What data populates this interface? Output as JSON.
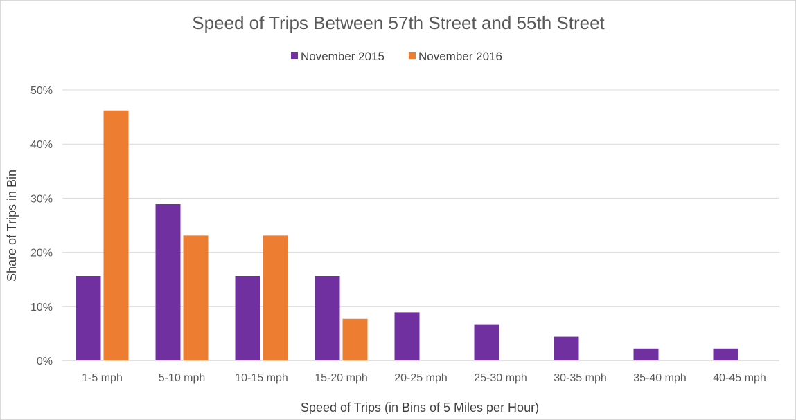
{
  "chart_data": {
    "type": "bar",
    "title": "Speed of Trips Between 57th Street and 55th Street",
    "xlabel": "Speed of Trips (in Bins of 5 Miles per Hour)",
    "ylabel": "Share of Trips in Bin",
    "categories": [
      "1-5 mph",
      "5-10 mph",
      "10-15 mph",
      "15-20 mph",
      "20-25 mph",
      "25-30 mph",
      "30-35 mph",
      "35-40 mph",
      "40-45 mph"
    ],
    "series": [
      {
        "name": "November 2015",
        "color": "#7030a0",
        "values": [
          15.6,
          28.9,
          15.6,
          15.6,
          8.9,
          6.7,
          4.4,
          2.2,
          2.2
        ]
      },
      {
        "name": "November 2016",
        "color": "#ed7d31",
        "values": [
          46.2,
          23.1,
          23.1,
          7.7,
          0,
          0,
          0,
          0,
          0
        ]
      }
    ],
    "ylim": [
      0,
      50
    ],
    "yticks": [
      "0%",
      "10%",
      "20%",
      "30%",
      "40%",
      "50%"
    ],
    "ytick_values": [
      0,
      10,
      20,
      30,
      40,
      50
    ],
    "grid": true,
    "legend_position": "top-center"
  }
}
